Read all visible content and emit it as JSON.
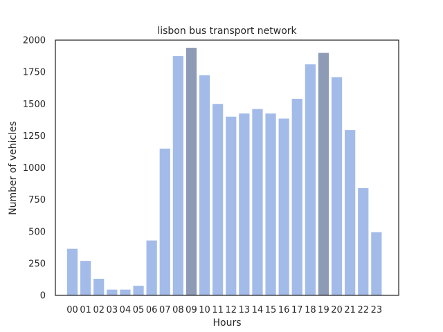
{
  "chart_data": {
    "type": "bar",
    "title": "lisbon bus transport network",
    "xlabel": "Hours",
    "ylabel": "Number of vehicles",
    "categories": [
      "00",
      "01",
      "02",
      "03",
      "04",
      "05",
      "06",
      "07",
      "08",
      "09",
      "10",
      "11",
      "12",
      "13",
      "14",
      "15",
      "16",
      "17",
      "18",
      "19",
      "20",
      "21",
      "22",
      "23"
    ],
    "values": [
      365,
      270,
      130,
      45,
      45,
      75,
      430,
      1150,
      1875,
      1940,
      1725,
      1500,
      1400,
      1425,
      1460,
      1425,
      1385,
      1540,
      1810,
      1900,
      1710,
      1295,
      840,
      495
    ],
    "highlighted": [
      "09",
      "19"
    ],
    "ylim": [
      0,
      2000
    ],
    "yticks": [
      "0",
      "250",
      "500",
      "750",
      "1000",
      "1250",
      "1500",
      "1750",
      "2000"
    ],
    "grid": false,
    "colors": {
      "bar": "#a3bbe8",
      "bar_highlight": "#8e9bb6",
      "frame": "#262626",
      "text": "#262626"
    }
  }
}
